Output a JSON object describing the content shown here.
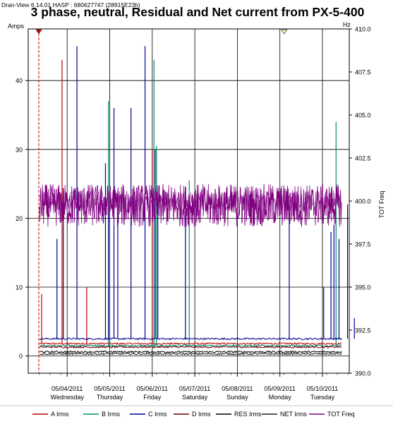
{
  "header": {
    "software": "Dran-View 6.14.01 HASP : 680627747 (28915E23h)"
  },
  "chart_data": {
    "type": "line",
    "title": "3 phase, neutral, Residual and Net current from PX-5-400",
    "y_left": {
      "label": "Amps",
      "range": [
        -2.5,
        47.5
      ],
      "ticks": [
        0,
        10,
        20,
        30,
        40
      ]
    },
    "y_right": {
      "label": "Hz",
      "axis_title": "TOT Freq",
      "range": [
        390.0,
        410.0
      ],
      "ticks": [
        "390.0",
        "392.5",
        "395.0",
        "397.5",
        "400.0",
        "402.5",
        "405.0",
        "407.5",
        "410.0"
      ]
    },
    "x_axis": {
      "ticks": [
        {
          "date": "05/04/2011",
          "day": "Wednesday"
        },
        {
          "date": "05/05/2011",
          "day": "Thursday"
        },
        {
          "date": "05/06/2011",
          "day": "Friday"
        },
        {
          "date": "05/07/2011",
          "day": "Saturday"
        },
        {
          "date": "05/08/2011",
          "day": "Sunday"
        },
        {
          "date": "05/09/2011",
          "day": "Monday"
        },
        {
          "date": "05/10/2011",
          "day": "Tuesday"
        }
      ]
    },
    "markers": [
      "red-triangle-marker",
      "yellow-triangle-marker"
    ],
    "series": [
      {
        "name": "A Irms",
        "color": "#c00000",
        "axis": "left",
        "baseline": 1.8,
        "spikes": [
          [
            0.05,
            9.0
          ],
          [
            0.53,
            43.0
          ],
          [
            1.11,
            10.0
          ],
          [
            2.65,
            30.0
          ]
        ]
      },
      {
        "name": "B Irms",
        "color": "#008a70",
        "axis": "left",
        "baseline": 1.5,
        "spikes": [
          [
            1.62,
            37.0
          ],
          [
            2.69,
            43.0
          ],
          [
            2.75,
            30.5
          ],
          [
            3.52,
            25.5
          ],
          [
            6.97,
            34.0
          ]
        ]
      },
      {
        "name": "C Irms",
        "color": "#000090",
        "axis": "left",
        "baseline": 2.5,
        "spikes": [
          [
            0.41,
            17.0
          ],
          [
            0.56,
            22.0
          ],
          [
            0.88,
            45.0
          ],
          [
            1.55,
            28.0
          ],
          [
            1.62,
            21.0
          ],
          [
            1.75,
            36.0
          ],
          [
            1.84,
            24.0
          ],
          [
            2.15,
            36.0
          ],
          [
            2.48,
            45.0
          ],
          [
            2.72,
            30.0
          ],
          [
            2.78,
            23.0
          ],
          [
            3.43,
            21.0
          ],
          [
            5.87,
            22.0
          ],
          [
            6.68,
            10.0
          ],
          [
            6.85,
            18.0
          ],
          [
            6.92,
            19.0
          ],
          [
            7.04,
            17.0
          ],
          [
            7.24,
            22.0
          ],
          [
            7.4,
            5.5
          ]
        ]
      },
      {
        "name": "D Irms",
        "color": "#6a0000",
        "axis": "left",
        "baseline": 1.3,
        "spikes": []
      },
      {
        "name": "RES Irms",
        "color": "#000000",
        "axis": "left",
        "baseline": 0.6,
        "spikes": []
      },
      {
        "name": "NET Irms",
        "color": "#202020",
        "axis": "left",
        "baseline": 0.3,
        "spikes": []
      },
      {
        "name": "TOT Freq",
        "color": "#800080",
        "axis": "right",
        "center": 400.0,
        "band": [
          398.5,
          401.0
        ]
      }
    ]
  }
}
